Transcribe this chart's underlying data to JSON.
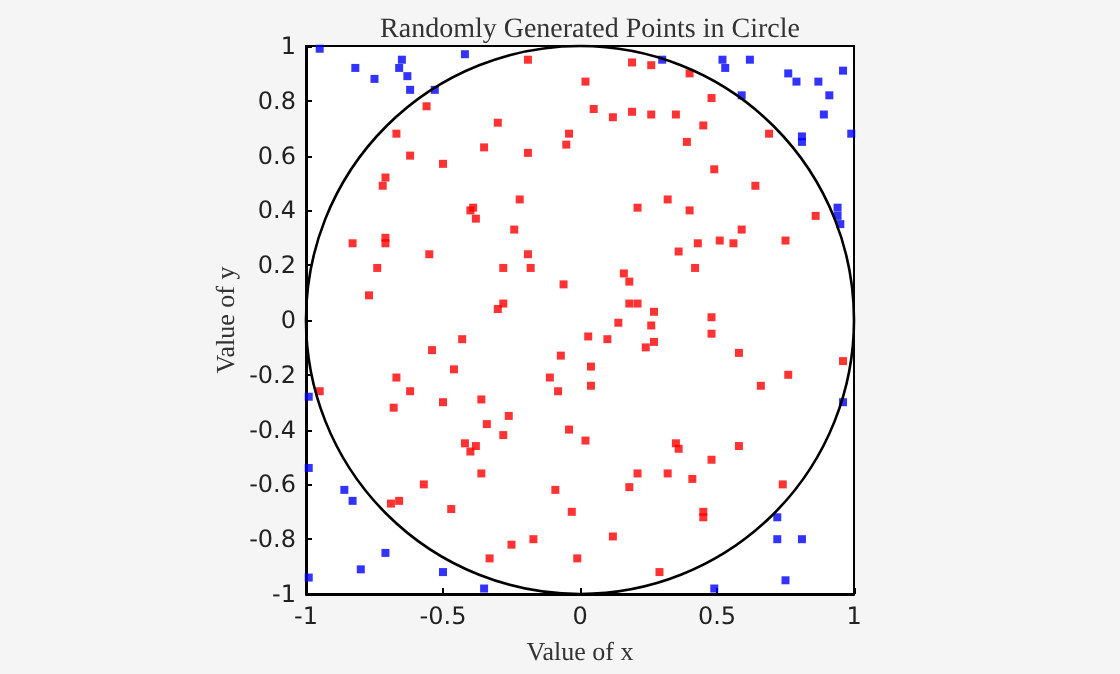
{
  "chart_data": {
    "type": "scatter",
    "title": "Randomly Generated Points in Circle",
    "xlabel": "Value of x",
    "ylabel": "Value of y",
    "xlim": [
      -1,
      1
    ],
    "ylim": [
      -1,
      1
    ],
    "xticks": [
      -1,
      -0.5,
      0,
      0.5,
      1
    ],
    "yticks": [
      -1,
      -0.8,
      -0.6,
      -0.4,
      -0.2,
      0,
      0.2,
      0.4,
      0.6,
      0.8,
      1
    ],
    "grid": false,
    "marker": "square",
    "series": [
      {
        "color": "#ff0000",
        "x": [
          -0.56,
          -0.67,
          -0.35,
          -0.62,
          -0.5,
          -0.71,
          -0.72,
          -0.39,
          -0.4,
          -0.38,
          -0.83,
          -0.71,
          -0.71,
          -0.55,
          -0.74,
          -0.77,
          -0.19,
          0.19,
          0.26,
          0.02,
          0.05,
          0.12,
          0.19,
          0.26,
          -0.3,
          -0.04,
          -0.05,
          -0.19,
          -0.22,
          0.32,
          0.21,
          -0.24,
          -0.19,
          -0.28,
          -0.18,
          -0.06,
          0.16,
          0.18,
          0.18,
          0.21,
          0.27,
          -0.28,
          -0.3,
          0.4,
          0.48,
          0.35,
          0.45,
          0.39,
          0.69,
          0.49,
          0.64,
          0.4,
          0.86,
          0.59,
          0.51,
          0.56,
          0.43,
          0.75,
          0.36,
          0.42,
          0.48,
          -0.95,
          -0.54,
          -0.43,
          -0.46,
          -0.67,
          -0.62,
          -0.68,
          -0.5,
          -0.36,
          -0.34,
          -0.42,
          -0.4,
          -0.38,
          -0.36,
          -0.57,
          -0.66,
          -0.69,
          -0.47,
          0.14,
          0.26,
          0.03,
          0.1,
          0.24,
          0.27,
          -0.07,
          0.04,
          -0.11,
          0.04,
          -0.08,
          -0.26,
          -0.28,
          -0.04,
          0.02,
          0.21,
          0.32,
          0.18,
          -0.09,
          -0.03,
          -0.17,
          -0.25,
          -0.33,
          0.12,
          -0.01,
          0.29,
          0.48,
          0.58,
          0.96,
          0.66,
          0.76,
          0.35,
          0.36,
          0.58,
          0.48,
          0.41,
          0.74,
          0.45,
          0.45
        ],
        "values": [
          0.78,
          0.68,
          0.63,
          0.6,
          0.57,
          0.52,
          0.49,
          0.41,
          0.4,
          0.37,
          0.28,
          0.3,
          0.28,
          0.24,
          0.19,
          0.09,
          0.95,
          0.94,
          0.93,
          0.87,
          0.77,
          0.74,
          0.76,
          0.75,
          0.72,
          0.68,
          0.64,
          0.61,
          0.44,
          0.44,
          0.41,
          0.33,
          0.24,
          0.19,
          0.19,
          0.13,
          0.17,
          0.14,
          0.06,
          0.06,
          0.03,
          0.06,
          0.04,
          0.9,
          0.81,
          0.75,
          0.71,
          0.65,
          0.68,
          0.55,
          0.49,
          0.4,
          0.38,
          0.33,
          0.29,
          0.28,
          0.28,
          0.29,
          0.25,
          0.19,
          0.01,
          -0.26,
          -0.11,
          -0.07,
          -0.18,
          -0.21,
          -0.26,
          -0.32,
          -0.3,
          -0.29,
          -0.38,
          -0.45,
          -0.48,
          -0.46,
          -0.56,
          -0.6,
          -0.66,
          -0.67,
          -0.69,
          -0.01,
          -0.02,
          -0.06,
          -0.07,
          -0.1,
          -0.08,
          -0.13,
          -0.17,
          -0.21,
          -0.24,
          -0.26,
          -0.35,
          -0.42,
          -0.4,
          -0.44,
          -0.56,
          -0.56,
          -0.61,
          -0.62,
          -0.7,
          -0.8,
          -0.82,
          -0.87,
          -0.79,
          -0.87,
          -0.92,
          -0.05,
          -0.12,
          -0.15,
          -0.24,
          -0.2,
          -0.45,
          -0.47,
          -0.46,
          -0.51,
          -0.58,
          -0.6,
          -0.7,
          -0.72
        ]
      },
      {
        "color": "#0000ff",
        "x": [
          -0.95,
          -0.82,
          -0.75,
          -0.65,
          -0.66,
          -0.63,
          -0.62,
          -0.53,
          -0.42,
          0.3,
          0.52,
          0.53,
          0.62,
          0.76,
          0.79,
          0.87,
          0.96,
          0.91,
          0.59,
          0.89,
          0.81,
          0.81,
          0.99,
          0.94,
          0.94,
          0.95,
          -0.99,
          -0.99,
          -0.86,
          -0.83,
          -0.71,
          -0.8,
          -0.99,
          -0.5,
          -0.35,
          0.96,
          0.72,
          0.72,
          0.81,
          0.75,
          0.49
        ],
        "values": [
          0.99,
          0.92,
          0.88,
          0.95,
          0.92,
          0.89,
          0.84,
          0.84,
          0.97,
          0.95,
          0.95,
          0.92,
          0.95,
          0.9,
          0.87,
          0.87,
          0.91,
          0.82,
          0.82,
          0.75,
          0.67,
          0.65,
          0.68,
          0.41,
          0.38,
          0.35,
          -0.28,
          -0.54,
          -0.62,
          -0.66,
          -0.85,
          -0.91,
          -0.94,
          -0.92,
          -0.98,
          -0.3,
          -0.72,
          -0.8,
          -0.8,
          -0.95,
          -0.98
        ]
      }
    ]
  }
}
